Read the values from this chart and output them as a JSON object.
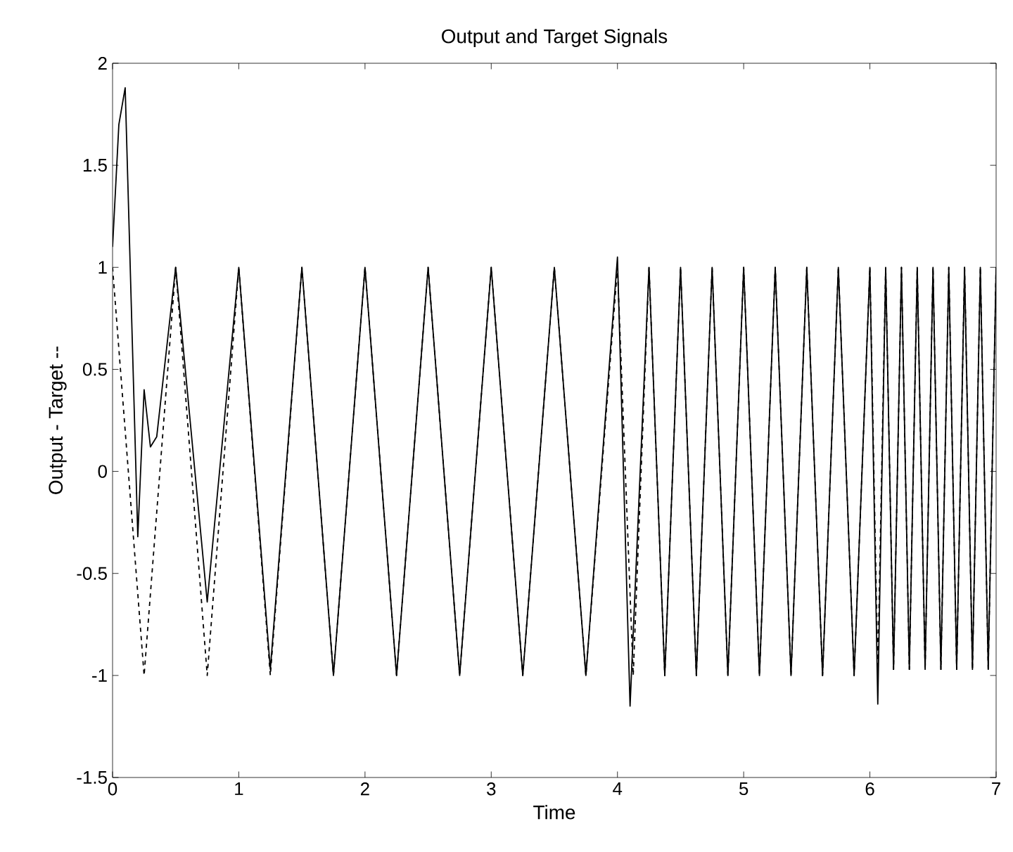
{
  "chart_data": {
    "type": "line",
    "title": "Output and Target Signals",
    "xlabel": "Time",
    "ylabel": "Output - Target --",
    "xlim": [
      0,
      7
    ],
    "xticks": [
      0,
      1,
      2,
      3,
      4,
      5,
      6,
      7
    ],
    "ylim": [
      -1.5,
      2
    ],
    "yticks": [
      -1.5,
      -1,
      -0.5,
      0,
      0.5,
      1,
      1.5,
      2
    ],
    "grid": false,
    "legend": false,
    "marker": "none",
    "series": [
      {
        "color": "#000000",
        "line_style": "solid",
        "x": [
          0,
          0.05,
          0.1,
          0.2,
          0.25,
          0.3,
          0.35,
          0.5,
          0.75,
          1,
          1.25,
          1.5,
          1.75,
          2,
          2.25,
          2.5,
          2.75,
          3,
          3.25,
          3.5,
          3.75,
          4,
          4.1,
          4.25,
          4.375,
          4.5,
          4.625,
          4.75,
          4.875,
          5,
          5.125,
          5.25,
          5.375,
          5.5,
          5.625,
          5.75,
          5.875,
          6,
          6.0625,
          6.125,
          6.1875,
          6.25,
          6.3125,
          6.375,
          6.4375,
          6.5,
          6.5625,
          6.625,
          6.6875,
          6.75,
          6.8125,
          6.875,
          6.9375,
          7
        ],
        "values": [
          1.1,
          1.7,
          1.88,
          -0.32,
          0.4,
          0.12,
          0.17,
          1,
          -0.64,
          1,
          -0.97,
          1,
          -1,
          1,
          -1,
          1,
          -1,
          1,
          -1,
          1,
          -1,
          1.05,
          -1.15,
          1,
          -1,
          1,
          -1,
          1,
          -1,
          1,
          -1,
          1,
          -1,
          1,
          -1,
          1,
          -1,
          1,
          -1.14,
          1,
          -0.97,
          1,
          -0.97,
          1,
          -0.97,
          1,
          -0.97,
          1,
          -0.97,
          1,
          -0.97,
          1,
          -0.97,
          1
        ]
      },
      {
        "color": "#000000",
        "line_style": "dashed",
        "x": [
          0,
          0.25,
          0.5,
          0.75,
          1,
          1.25,
          1.5,
          1.75,
          2,
          2.25,
          2.5,
          2.75,
          3,
          3.25,
          3.5,
          3.75,
          4,
          4.125,
          4.25,
          4.375,
          4.5,
          4.625,
          4.75,
          4.875,
          5,
          5.125,
          5.25,
          5.375,
          5.5,
          5.625,
          5.75,
          5.875,
          6,
          6.0625,
          6.125,
          6.1875,
          6.25,
          6.3125,
          6.375,
          6.4375,
          6.5,
          6.5625,
          6.625,
          6.6875,
          6.75,
          6.8125,
          6.875,
          6.9375,
          7
        ],
        "values": [
          1,
          -1,
          1,
          -1,
          1,
          -1,
          1,
          -1,
          1,
          -1,
          1,
          -1,
          1,
          -1,
          1,
          -1,
          1,
          -1,
          1,
          -1,
          1,
          -1,
          1,
          -1,
          1,
          -1,
          1,
          -1,
          1,
          -1,
          1,
          -1,
          1,
          -0.97,
          1,
          -0.97,
          1,
          -0.97,
          1,
          -0.97,
          1,
          -0.97,
          1,
          -0.97,
          1,
          -0.97,
          1,
          -0.97,
          1
        ]
      }
    ]
  }
}
